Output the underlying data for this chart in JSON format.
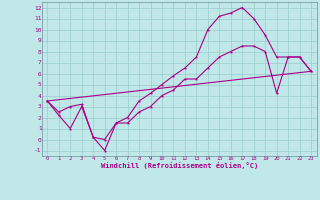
{
  "xlabel": "Windchill (Refroidissement éolien,°C)",
  "bg_color": "#c0e8e8",
  "line_color": "#aa0088",
  "grid_color": "#98cccc",
  "xlim": [
    -0.5,
    23.5
  ],
  "ylim": [
    -1.5,
    12.5
  ],
  "xticks": [
    0,
    1,
    2,
    3,
    4,
    5,
    6,
    7,
    8,
    9,
    10,
    11,
    12,
    13,
    14,
    15,
    16,
    17,
    18,
    19,
    20,
    21,
    22,
    23
  ],
  "yticks": [
    -1,
    0,
    1,
    2,
    3,
    4,
    5,
    6,
    7,
    8,
    9,
    10,
    11,
    12
  ],
  "line1_x": [
    0,
    1,
    2,
    3,
    4,
    5,
    6,
    7,
    8,
    9,
    10,
    11,
    12,
    13,
    14,
    15,
    16,
    17,
    18,
    19,
    20,
    21,
    22,
    23
  ],
  "line1_y": [
    3.5,
    2.2,
    1.0,
    3.0,
    0.2,
    -1.0,
    1.5,
    2.0,
    3.5,
    4.2,
    5.0,
    5.8,
    6.5,
    7.5,
    10.0,
    11.2,
    11.5,
    12.0,
    11.0,
    9.5,
    7.5,
    7.5,
    7.5,
    6.2
  ],
  "line2_x": [
    0,
    1,
    2,
    3,
    4,
    5,
    6,
    7,
    8,
    9,
    10,
    11,
    12,
    13,
    14,
    15,
    16,
    17,
    18,
    19,
    20,
    21,
    22,
    23
  ],
  "line2_y": [
    3.5,
    2.5,
    3.0,
    3.2,
    0.2,
    0.0,
    1.5,
    1.5,
    2.5,
    3.0,
    4.0,
    4.5,
    5.5,
    5.5,
    6.5,
    7.5,
    8.0,
    8.5,
    8.5,
    8.0,
    4.2,
    7.5,
    7.5,
    6.2
  ],
  "line3_x": [
    0,
    23
  ],
  "line3_y": [
    3.5,
    6.2
  ]
}
